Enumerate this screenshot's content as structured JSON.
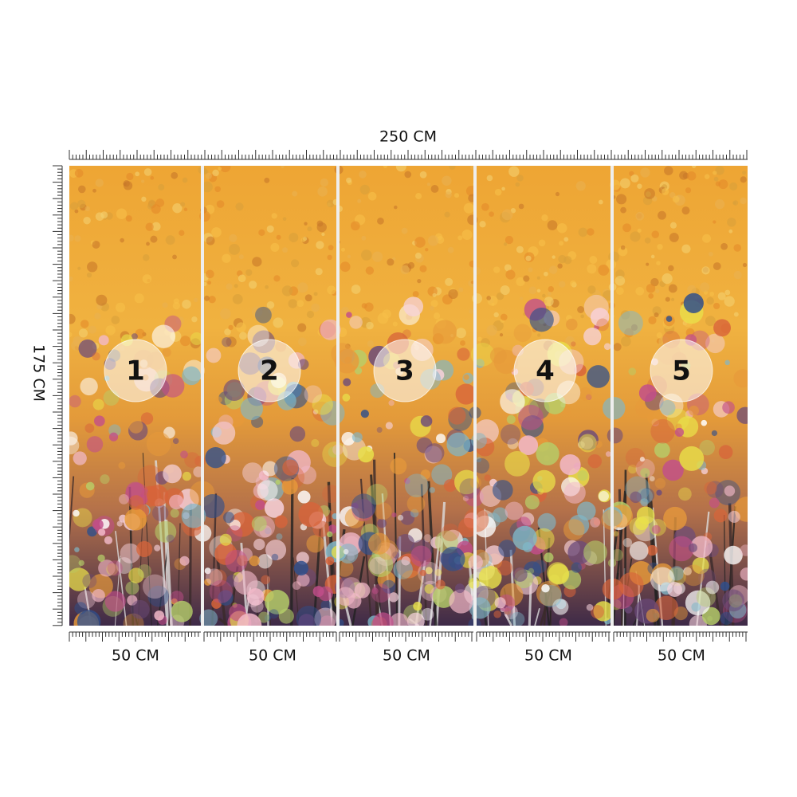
{
  "width_label": "250 CM",
  "height_label": "175 CM",
  "panels": [
    {
      "number": "1",
      "width_label": "50 CM"
    },
    {
      "number": "2",
      "width_label": "50 CM"
    },
    {
      "number": "3",
      "width_label": "50 CM"
    },
    {
      "number": "4",
      "width_label": "50 CM"
    },
    {
      "number": "5",
      "width_label": "50 CM"
    }
  ]
}
